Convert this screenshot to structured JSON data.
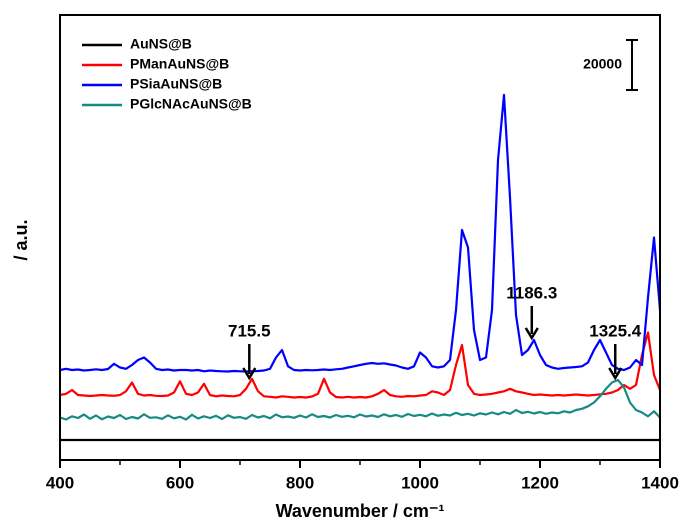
{
  "chart_data": {
    "type": "line",
    "y_label": "/ a.u.",
    "x_label": "Wavenumber / cm⁻¹",
    "xlim": [
      400,
      1400
    ],
    "xticks": [
      400,
      600,
      800,
      1000,
      1200,
      1400
    ],
    "ylim": [
      0,
      178000
    ],
    "scale_bar": 20000,
    "legend": "upper-left",
    "x": [
      400,
      410,
      420,
      430,
      440,
      450,
      460,
      470,
      480,
      490,
      500,
      510,
      520,
      530,
      540,
      550,
      560,
      570,
      580,
      590,
      600,
      610,
      620,
      630,
      640,
      650,
      660,
      670,
      680,
      690,
      700,
      710,
      720,
      730,
      740,
      750,
      760,
      770,
      780,
      790,
      800,
      810,
      820,
      830,
      840,
      850,
      860,
      870,
      880,
      890,
      900,
      910,
      920,
      930,
      940,
      950,
      960,
      970,
      980,
      990,
      1000,
      1010,
      1020,
      1030,
      1040,
      1050,
      1060,
      1070,
      1080,
      1090,
      1100,
      1110,
      1120,
      1130,
      1140,
      1150,
      1160,
      1170,
      1180,
      1190,
      1200,
      1210,
      1220,
      1230,
      1240,
      1250,
      1260,
      1270,
      1280,
      1290,
      1300,
      1310,
      1320,
      1330,
      1340,
      1350,
      1360,
      1370,
      1380,
      1390,
      1400
    ],
    "series": [
      {
        "name": "AuNS@B",
        "color": "#000000",
        "values": [
          8000,
          8000,
          8000,
          8000,
          8000,
          8000,
          8000,
          8000,
          8000,
          8000,
          8000,
          8000,
          8000,
          8000,
          8000,
          8000,
          8000,
          8000,
          8000,
          8000,
          8000,
          8000,
          8000,
          8000,
          8000,
          8000,
          8000,
          8000,
          8000,
          8000,
          8000,
          8000,
          8000,
          8000,
          8000,
          8000,
          8000,
          8000,
          8000,
          8000,
          8000,
          8000,
          8000,
          8000,
          8000,
          8000,
          8000,
          8000,
          8000,
          8000,
          8000,
          8000,
          8000,
          8000,
          8000,
          8000,
          8000,
          8000,
          8000,
          8000,
          8000,
          8000,
          8000,
          8000,
          8000,
          8000,
          8000,
          8000,
          8000,
          8000,
          8000,
          8000,
          8000,
          8000,
          8000,
          8000,
          8000,
          8000,
          8000,
          8000,
          8000,
          8000,
          8000,
          8000,
          8000,
          8000,
          8000,
          8000,
          8000,
          8000,
          8000,
          8000,
          8000,
          8000,
          8000,
          8000,
          8000,
          8000,
          8000,
          8000,
          8000
        ]
      },
      {
        "name": "PManAuNS@B",
        "color": "#ff0000",
        "values": [
          26000,
          26500,
          28000,
          26000,
          25800,
          25600,
          25800,
          26000,
          25800,
          25700,
          26000,
          27500,
          31000,
          26500,
          25800,
          26000,
          25700,
          25600,
          25800,
          27000,
          31500,
          26500,
          26000,
          27000,
          30500,
          26000,
          25500,
          25800,
          25600,
          25500,
          26000,
          28500,
          32500,
          27500,
          25500,
          25300,
          25000,
          25500,
          25300,
          25000,
          25200,
          25000,
          25400,
          26500,
          32500,
          27000,
          25200,
          25000,
          25300,
          25000,
          25200,
          25000,
          25500,
          26500,
          28000,
          26000,
          25500,
          25300,
          25600,
          25500,
          25800,
          26000,
          27500,
          27000,
          26000,
          28000,
          38000,
          46000,
          30000,
          26500,
          26000,
          26200,
          26500,
          27000,
          27500,
          28500,
          27500,
          27000,
          26500,
          26000,
          26200,
          26000,
          25800,
          26000,
          25800,
          26000,
          26200,
          26000,
          25800,
          26000,
          26300,
          26500,
          27000,
          28000,
          30000,
          28500,
          30000,
          42000,
          51000,
          34000,
          28000
        ]
      },
      {
        "name": "PSiaAuNS@B",
        "color": "#0000ff",
        "values": [
          36000,
          36500,
          36000,
          36200,
          35800,
          36000,
          36300,
          36000,
          36400,
          38500,
          37000,
          36500,
          38000,
          40000,
          41000,
          39000,
          36500,
          36000,
          36200,
          35800,
          36000,
          36000,
          35800,
          36000,
          35500,
          35800,
          35600,
          35500,
          35400,
          35600,
          35500,
          35400,
          35500,
          35600,
          35800,
          36500,
          41000,
          44000,
          37500,
          36000,
          35800,
          36000,
          35900,
          36000,
          36200,
          36000,
          36300,
          36500,
          37000,
          37500,
          38000,
          38500,
          38800,
          38500,
          38700,
          38200,
          37800,
          37000,
          36500,
          37500,
          43000,
          41000,
          37500,
          37000,
          37500,
          40000,
          60000,
          92000,
          85000,
          52000,
          40000,
          41000,
          60000,
          120000,
          146000,
          105000,
          58000,
          42000,
          44000,
          48000,
          42000,
          38000,
          37000,
          36500,
          36800,
          37000,
          37200,
          37500,
          39000,
          44000,
          48000,
          43000,
          38000,
          36500,
          36000,
          37000,
          40000,
          38000,
          65000,
          89000,
          60000
        ]
      },
      {
        "name": "PGlcNAcAuNS@B",
        "color": "#168a84",
        "values": [
          17000,
          16200,
          17500,
          16800,
          18200,
          16500,
          17800,
          16300,
          17400,
          16800,
          18000,
          16400,
          17200,
          16600,
          18300,
          16900,
          17100,
          16500,
          17900,
          16700,
          17300,
          16200,
          18100,
          16600,
          17500,
          16800,
          17700,
          16400,
          17900,
          16900,
          17200,
          16500,
          18000,
          17000,
          17600,
          16700,
          18200,
          17100,
          17400,
          16900,
          17800,
          17000,
          18300,
          17200,
          17600,
          17000,
          18000,
          17300,
          17700,
          17100,
          18200,
          17400,
          17800,
          17200,
          18300,
          17500,
          18000,
          17300,
          18400,
          17600,
          18100,
          17500,
          18600,
          17700,
          18200,
          17800,
          18900,
          18000,
          18500,
          17800,
          18700,
          18200,
          19000,
          18300,
          19200,
          18500,
          20000,
          18800,
          19300,
          18600,
          19200,
          18500,
          19000,
          18700,
          19500,
          19000,
          20000,
          20500,
          21500,
          23000,
          25500,
          28500,
          31000,
          32000,
          29000,
          23000,
          20000,
          19000,
          17500,
          19500,
          17000
        ]
      }
    ],
    "annotations": [
      {
        "label": "715.5",
        "x": 715.5
      },
      {
        "label": "1186.3",
        "x": 1186.3
      },
      {
        "label": "1325.4",
        "x": 1325.4
      }
    ]
  }
}
